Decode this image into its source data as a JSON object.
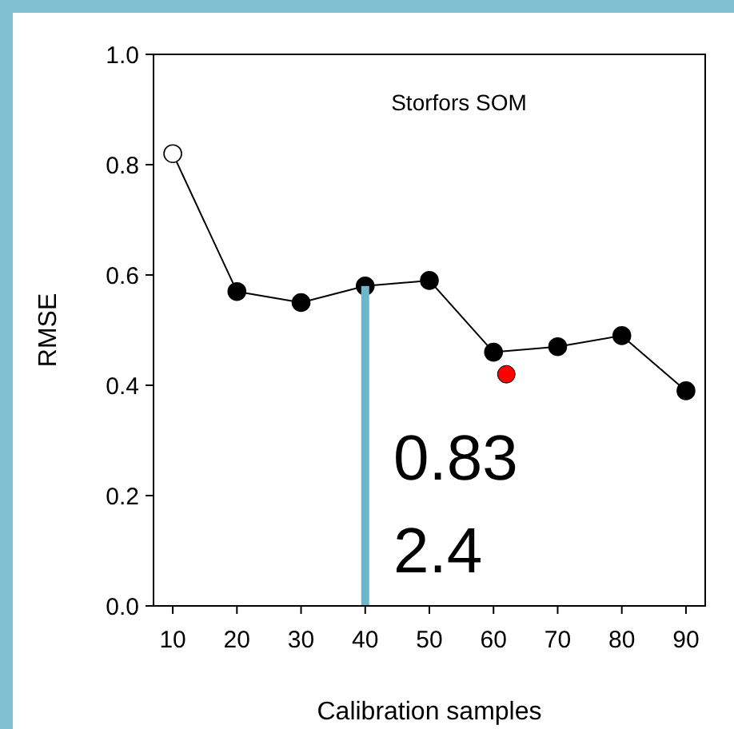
{
  "chart_data": {
    "type": "line",
    "title": "Storfors SOM",
    "xlabel": "Calibration samples",
    "ylabel": "RMSE",
    "annotations": [
      "0.83",
      "2.4"
    ],
    "series": [
      {
        "type": "bar",
        "x": [
          40
        ],
        "values": [
          0.58
        ],
        "color": "#6db6cc"
      },
      {
        "x": [
          10,
          20,
          30,
          40,
          50,
          60,
          70,
          80,
          90
        ],
        "values": [
          0.82,
          0.57,
          0.55,
          0.58,
          0.59,
          0.46,
          0.47,
          0.49,
          0.39
        ],
        "color": "#000000",
        "colors": [
          "#ffffff",
          "#000000",
          "#000000",
          "#000000",
          "#000000",
          "#000000",
          "#000000",
          "#000000",
          "#000000"
        ]
      },
      {
        "type": "scatter",
        "x": [
          62
        ],
        "values": [
          0.42
        ],
        "color": "#ff0000"
      }
    ],
    "xlim": [
      7,
      93
    ],
    "xticks": [
      10,
      20,
      30,
      40,
      50,
      60,
      70,
      80,
      90
    ],
    "ylim": [
      0,
      1
    ],
    "yticks": [
      {
        "value": 0,
        "label": "0.0"
      },
      {
        "value": 0.2,
        "label": "0.2"
      },
      {
        "value": 0.4,
        "label": "0.4"
      },
      {
        "value": 0.6,
        "label": "0.6"
      },
      {
        "value": 0.8,
        "label": "0.8"
      },
      {
        "value": 1,
        "label": "1.0"
      }
    ],
    "marker": "circle"
  }
}
